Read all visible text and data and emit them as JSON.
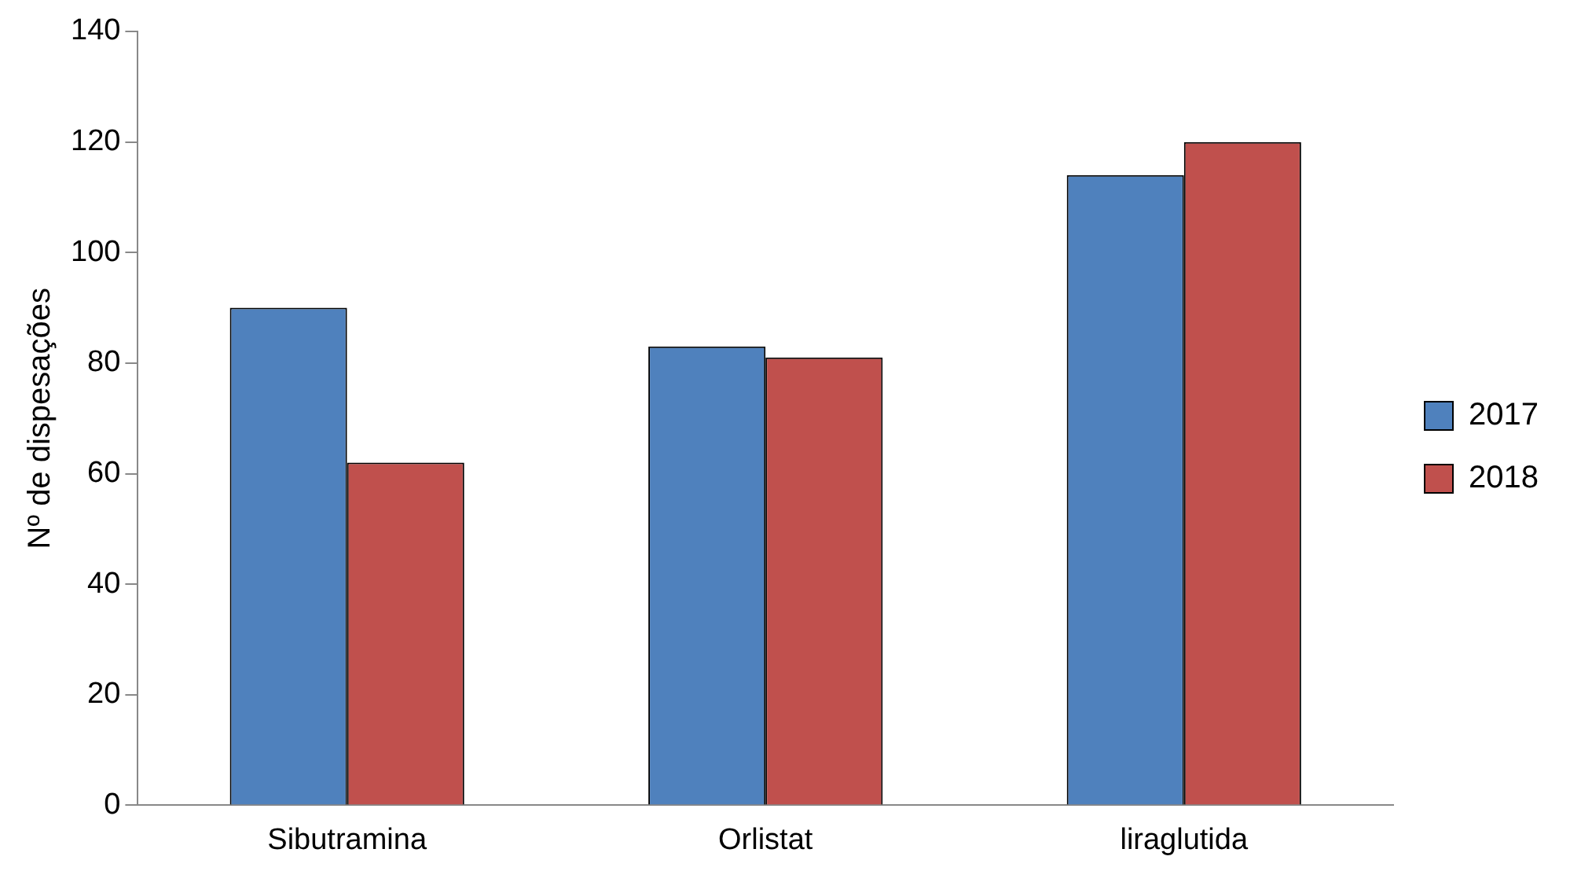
{
  "chart_data": {
    "type": "bar",
    "ylabel": "Nº de dispesações",
    "categories": [
      "Sibutramina",
      "Orlistat",
      "liraglutida"
    ],
    "series": [
      {
        "name": "2017",
        "color": "#4f81bd",
        "values": [
          90,
          83,
          114
        ]
      },
      {
        "name": "2018",
        "color": "#c0504d",
        "values": [
          62,
          81,
          120
        ]
      }
    ],
    "ylim": [
      0,
      140
    ],
    "yticks": [
      0,
      20,
      40,
      60,
      80,
      100,
      120,
      140
    ],
    "grid": false,
    "legend": "right"
  }
}
